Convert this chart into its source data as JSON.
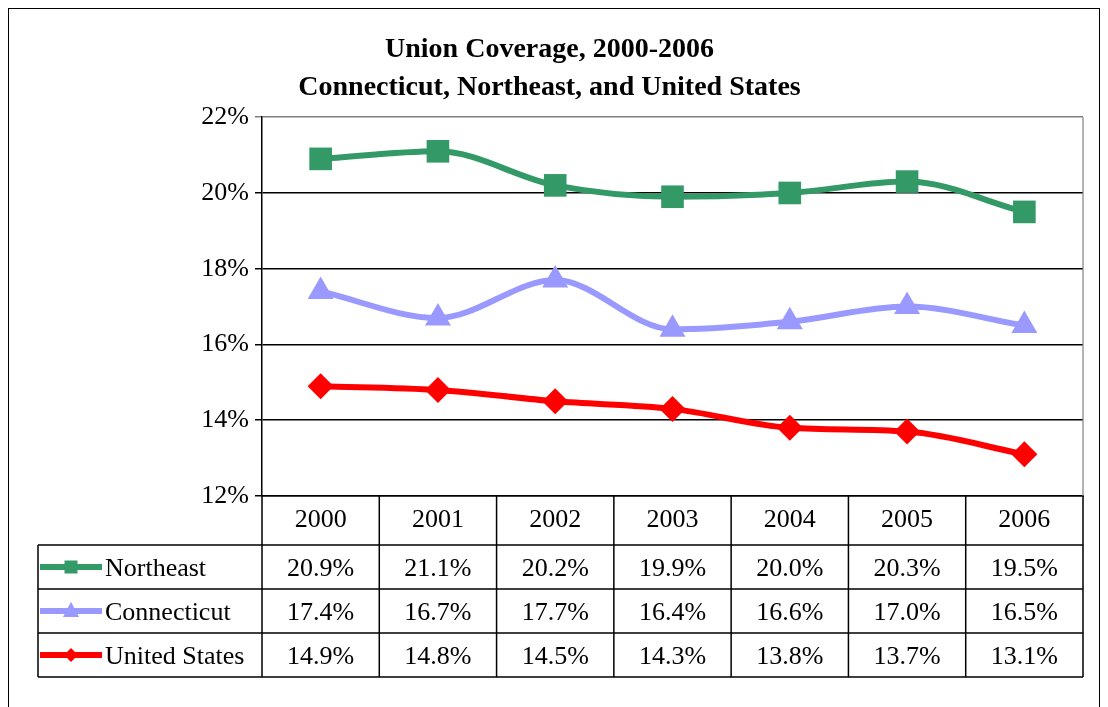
{
  "chart_data": {
    "type": "line",
    "title": "Union Coverage, 2000-2006",
    "subtitle": "Connecticut, Northeast, and United States",
    "categories": [
      "2000",
      "2001",
      "2002",
      "2003",
      "2004",
      "2005",
      "2006"
    ],
    "series": [
      {
        "name": "Northeast",
        "color": "#339966",
        "marker": "square",
        "values": [
          20.9,
          21.1,
          20.2,
          19.9,
          20.0,
          20.3,
          19.5
        ],
        "value_labels": [
          "20.9%",
          "21.1%",
          "20.2%",
          "19.9%",
          "20.0%",
          "20.3%",
          "19.5%"
        ]
      },
      {
        "name": "Connecticut",
        "color": "#9999ff",
        "marker": "triangle",
        "values": [
          17.4,
          16.7,
          17.7,
          16.4,
          16.6,
          17.0,
          16.5
        ],
        "value_labels": [
          "17.4%",
          "16.7%",
          "17.7%",
          "16.4%",
          "16.6%",
          "17.0%",
          "16.5%"
        ]
      },
      {
        "name": "United States",
        "color": "#ff0000",
        "marker": "diamond",
        "values": [
          14.9,
          14.8,
          14.5,
          14.3,
          13.8,
          13.7,
          13.1
        ],
        "value_labels": [
          "14.9%",
          "14.8%",
          "14.5%",
          "14.3%",
          "13.8%",
          "13.7%",
          "13.1%"
        ]
      }
    ],
    "ylim": [
      12,
      22
    ],
    "yticks": [
      {
        "value": 12,
        "label": "12%"
      },
      {
        "value": 14,
        "label": "14%"
      },
      {
        "value": 16,
        "label": "16%"
      },
      {
        "value": 18,
        "label": "18%"
      },
      {
        "value": 20,
        "label": "20%"
      },
      {
        "value": 22,
        "label": "22%"
      }
    ],
    "grid": "y",
    "legend": "bottom left",
    "line_style": "solid"
  }
}
